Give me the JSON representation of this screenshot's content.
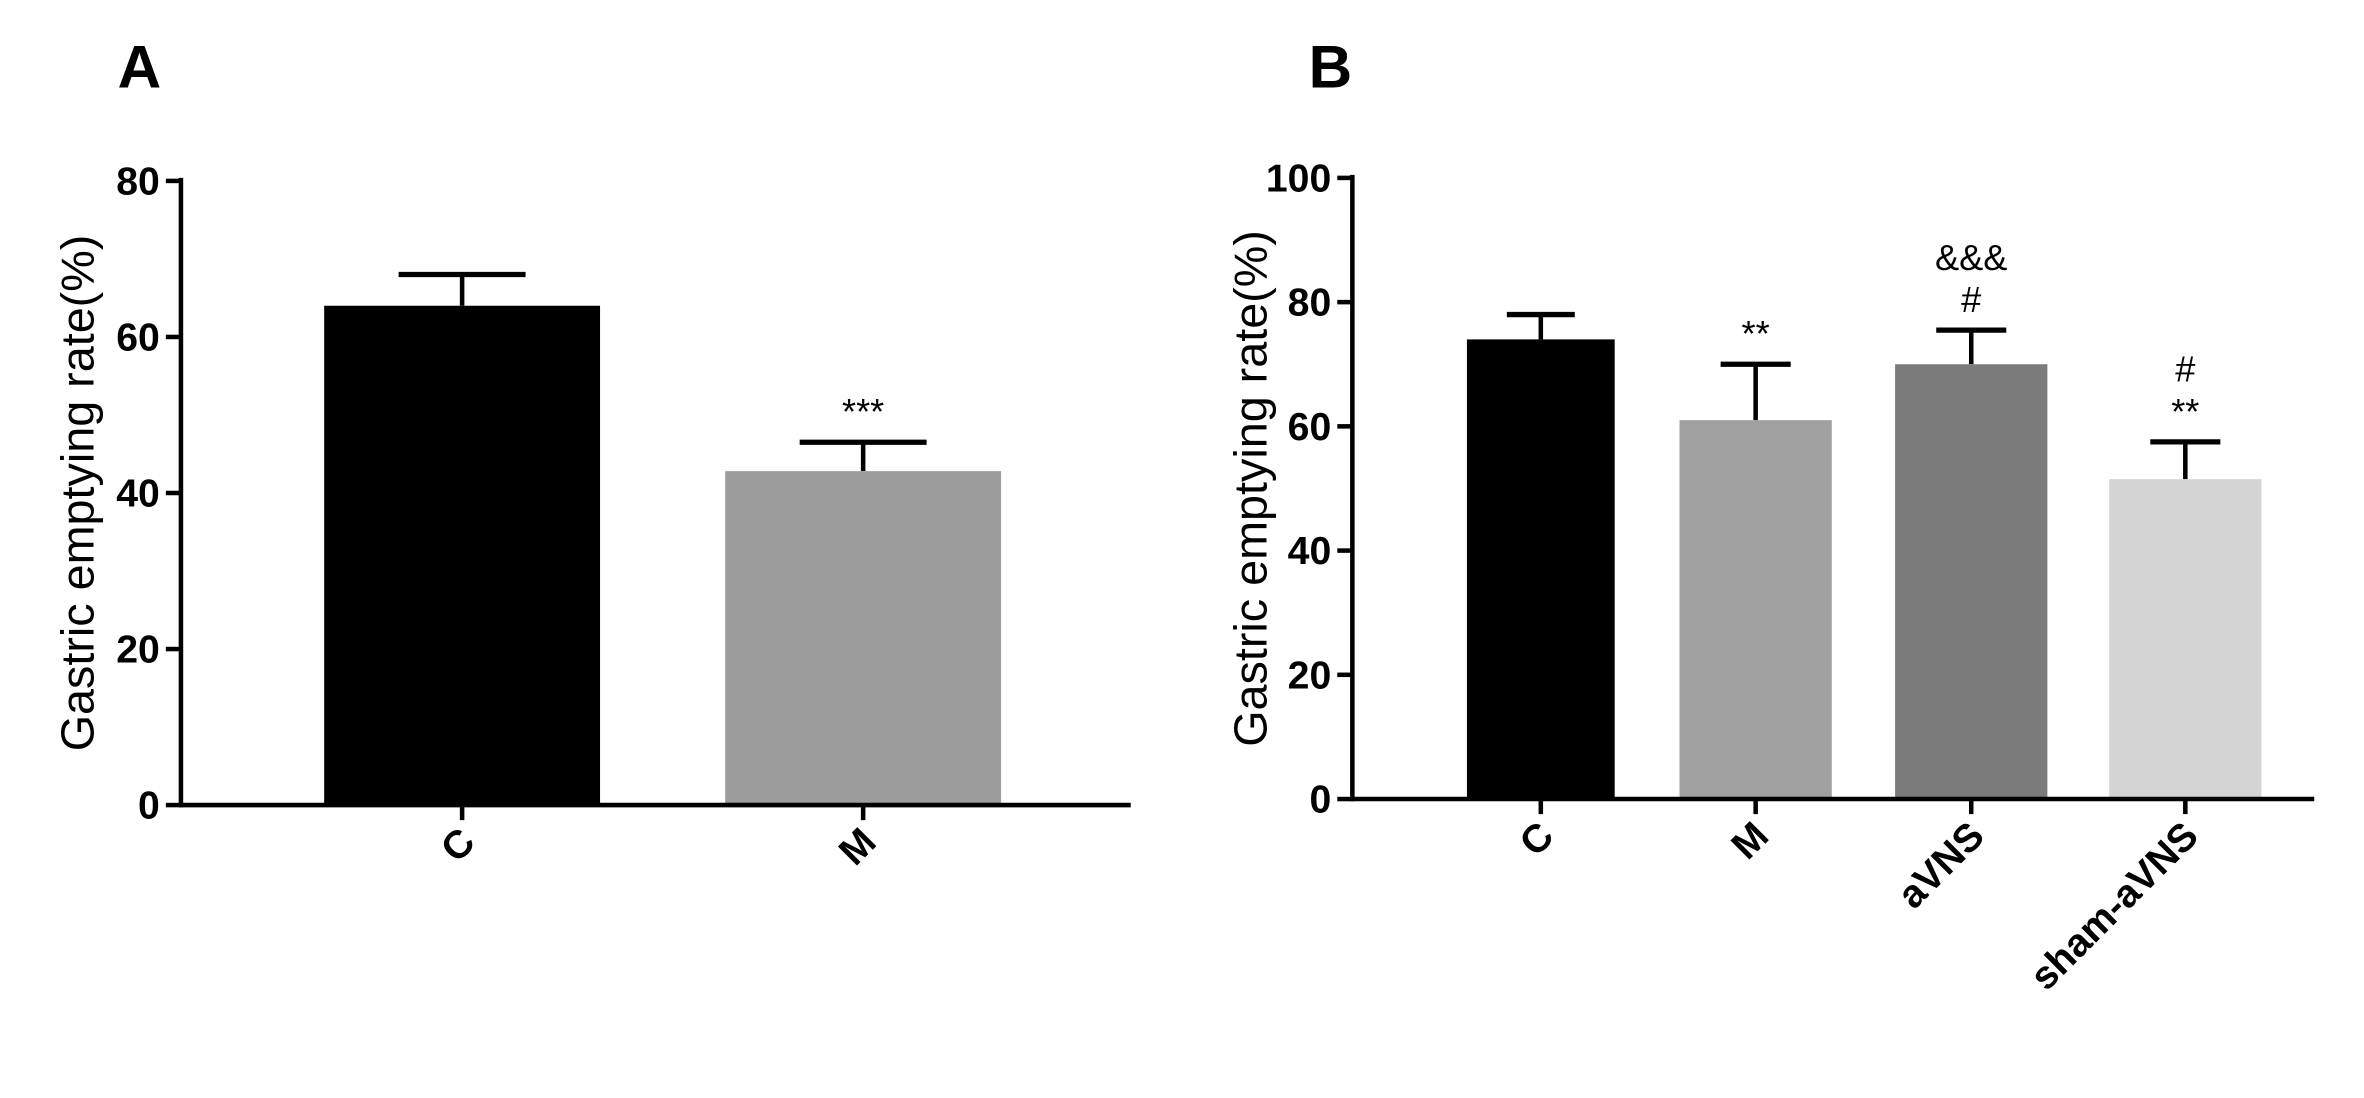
{
  "chart_data": [
    {
      "type": "bar",
      "panel": "A",
      "y_label": "Gastric emptying rate(%)",
      "categories": [
        "C",
        "M"
      ],
      "values": [
        64,
        42.8
      ],
      "errors": [
        4,
        3.7
      ],
      "colors": [
        "#000000",
        "#9c9c9c"
      ],
      "annotations": [
        [],
        [
          "***"
        ]
      ],
      "ylim": [
        0,
        80
      ],
      "yticks": [
        0,
        20,
        40,
        60,
        80
      ]
    },
    {
      "type": "bar",
      "panel": "B",
      "y_label": "Gastric emptying rate(%)",
      "categories": [
        "C",
        "M",
        "aVNS",
        "sham-aVNS"
      ],
      "values": [
        74,
        61,
        70,
        51.5
      ],
      "errors": [
        4,
        9,
        5.5,
        6
      ],
      "colors": [
        "#000000",
        "#a0a0a0",
        "#7b7b7b",
        "#d4d4d4"
      ],
      "annotations": [
        [],
        [
          "**"
        ],
        [
          "&&&",
          "#"
        ],
        [
          "#",
          "**"
        ]
      ],
      "ylim": [
        0,
        100
      ],
      "yticks": [
        0,
        20,
        40,
        60,
        80,
        100
      ]
    }
  ]
}
